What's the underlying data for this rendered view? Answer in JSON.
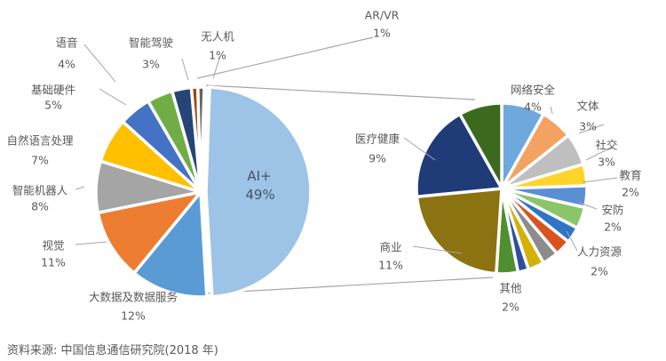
{
  "chart_data": [
    {
      "type": "pie",
      "name": "main",
      "slices": [
        {
          "label": "AI+",
          "value": 49,
          "pct": "49%",
          "color": "#9dc3e6"
        },
        {
          "label": "大数据及数据服务",
          "value": 12,
          "pct": "12%",
          "color": "#5b9bd5"
        },
        {
          "label": "视觉",
          "value": 11,
          "pct": "11%",
          "color": "#ed7d31"
        },
        {
          "label": "智能机器人",
          "value": 8,
          "pct": "8%",
          "color": "#a5a5a5"
        },
        {
          "label": "自然语言处理",
          "value": 7,
          "pct": "7%",
          "color": "#ffc000"
        },
        {
          "label": "基础硬件",
          "value": 5,
          "pct": "5%",
          "color": "#4472c4"
        },
        {
          "label": "语音",
          "value": 4,
          "pct": "4%",
          "color": "#70ad47"
        },
        {
          "label": "智能驾驶",
          "value": 3,
          "pct": "3%",
          "color": "#264478"
        },
        {
          "label": "无人机",
          "value": 1,
          "pct": "1%",
          "color": "#9e480e"
        },
        {
          "label": "AR/VR",
          "value": 1,
          "pct": "1%",
          "color": "#636363"
        }
      ]
    },
    {
      "type": "pie",
      "name": "AI+ breakdown",
      "slices": [
        {
          "label": "网络安全",
          "value": 4,
          "pct": "4%",
          "color": "#6fa8dc"
        },
        {
          "label": "文体",
          "value": 3,
          "pct": "3%",
          "color": "#f4a261"
        },
        {
          "label": "社交",
          "value": 3,
          "pct": "3%",
          "color": "#bfbfbf"
        },
        {
          "label": "教育",
          "value": 2,
          "pct": "2%",
          "color": "#ffd32a"
        },
        {
          "label": "安防",
          "value": 2,
          "pct": "2%",
          "color": "#5b8fd5"
        },
        {
          "label": "",
          "value": 2,
          "pct": "",
          "color": "#8bc56a"
        },
        {
          "label": "人力资源",
          "value": 1.5,
          "pct": "2%",
          "color": "#2e75c6"
        },
        {
          "label": "",
          "value": 1.5,
          "pct": "",
          "color": "#d9531e"
        },
        {
          "label": "",
          "value": 1.5,
          "pct": "",
          "color": "#8c8c8c"
        },
        {
          "label": "",
          "value": 1.5,
          "pct": "",
          "color": "#d4b106"
        },
        {
          "label": "",
          "value": 1,
          "pct": "",
          "color": "#2f4f9e"
        },
        {
          "label": "其他",
          "value": 2,
          "pct": "2%",
          "color": "#4f8f2f"
        },
        {
          "label": "商业",
          "value": 11,
          "pct": "11%",
          "color": "#8c7312"
        },
        {
          "label": "医疗健康",
          "value": 9,
          "pct": "9%",
          "color": "#1f3c78"
        },
        {
          "label": "",
          "value": 4,
          "pct": "",
          "color": "#3b6a1f"
        }
      ]
    }
  ],
  "footer": "资料来源: 中国信息通信研究院(2018 年)"
}
